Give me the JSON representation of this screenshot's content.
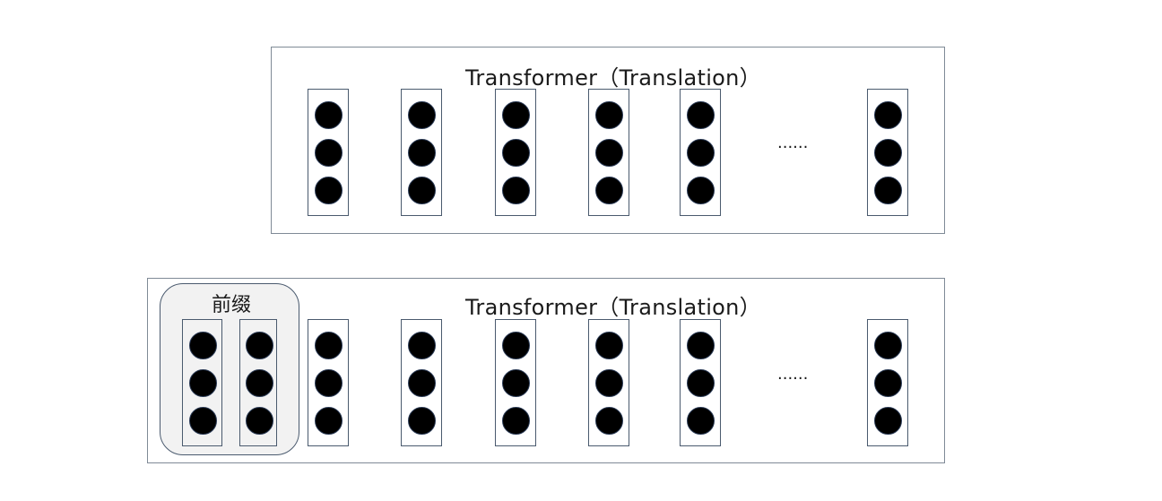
{
  "diagram": {
    "top_panel": {
      "title": "Transformer（Translation）",
      "ellipsis": "......",
      "token_columns": 6,
      "dots_per_column": 3
    },
    "bottom_panel": {
      "title": "Transformer（Translation）",
      "ellipsis": "......",
      "token_columns": 6,
      "dots_per_column": 3,
      "prefix": {
        "label": "前缀",
        "columns": 2,
        "background_color": "#f2f2f2"
      }
    },
    "colors": {
      "panel_border": "#7f8a96",
      "column_border": "#4a5a6e",
      "dot_fill": "#000000"
    }
  }
}
